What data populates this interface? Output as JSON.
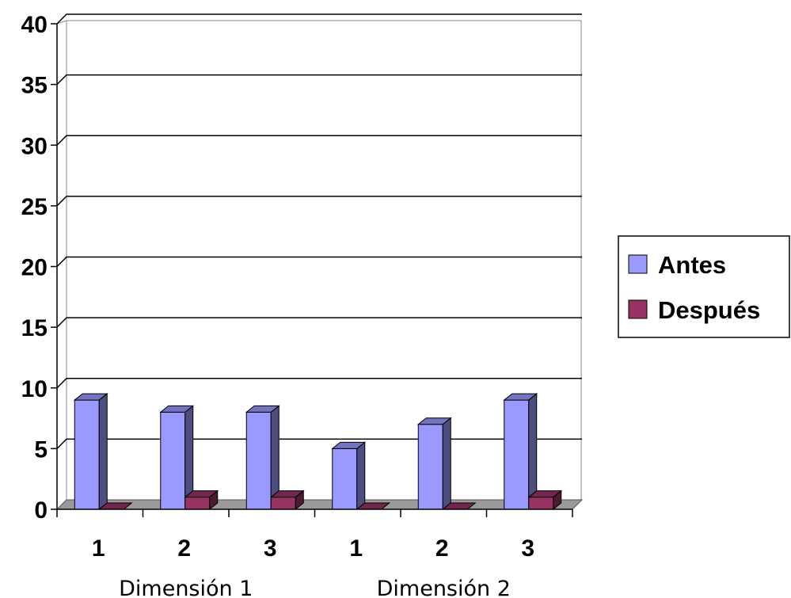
{
  "chart_data": {
    "type": "bar",
    "categories": [
      "1",
      "2",
      "3",
      "1",
      "2",
      "3"
    ],
    "groups": [
      {
        "label": "Dimensión 1",
        "categories": [
          "1",
          "2",
          "3"
        ]
      },
      {
        "label": "Dimensión 2",
        "categories": [
          "1",
          "2",
          "3"
        ]
      }
    ],
    "series": [
      {
        "name": "Antes",
        "values": [
          9,
          8,
          8,
          5,
          7,
          9
        ],
        "color": "#9999ff"
      },
      {
        "name": "Después",
        "values": [
          0,
          1,
          1,
          0,
          0,
          1
        ],
        "color": "#993366"
      }
    ],
    "yticks": [
      "0",
      "5",
      "10",
      "15",
      "20",
      "25",
      "30",
      "35",
      "40"
    ],
    "ylim": [
      0,
      40
    ],
    "grid": true,
    "legend_position": "right",
    "title": "",
    "xlabel": "",
    "ylabel": ""
  }
}
